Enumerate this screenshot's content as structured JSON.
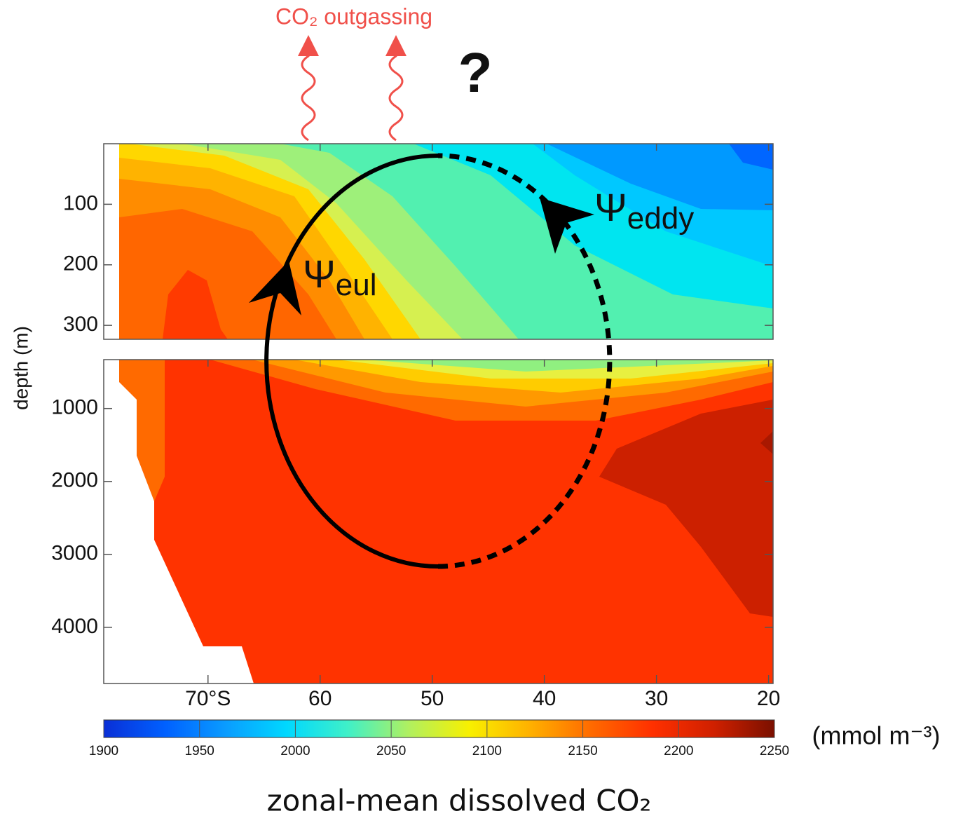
{
  "chart_data": {
    "type": "contour",
    "title": "zonal-mean dissolved CO₂",
    "ylabel": "depth (m)",
    "xlim": [
      79.3,
      19.6
    ],
    "xticks": [
      {
        "value": 70,
        "label": "70°S"
      },
      60,
      50,
      40,
      30,
      20
    ],
    "panels": [
      {
        "ylim": [
          0,
          323
        ],
        "yticks": [
          100,
          200,
          300
        ]
      },
      {
        "ylim": [
          330,
          4770
        ],
        "yticks": [
          1000,
          2000,
          3000,
          4000
        ]
      }
    ],
    "colorbar": {
      "lim": [
        1900,
        2250
      ],
      "ticks": [
        1900,
        1950,
        2000,
        2050,
        2100,
        2150,
        2200,
        2250
      ],
      "label": "(mmol m⁻³)",
      "colors": [
        "#0a2fd6",
        "#0060ff",
        "#0a9cff",
        "#00d8ff",
        "#3ff0c8",
        "#b0f060",
        "#f8f000",
        "#ffb000",
        "#ff6a00",
        "#ff3000",
        "#d02000",
        "#7a1000"
      ]
    },
    "annotations": {
      "outgassing": "CO₂ outgassing",
      "question": "?",
      "psi_eul": {
        "symbol": "Ψ",
        "subscript": "eul"
      },
      "psi_eddy": {
        "symbol": "Ψ",
        "subscript": "eddy"
      }
    }
  }
}
